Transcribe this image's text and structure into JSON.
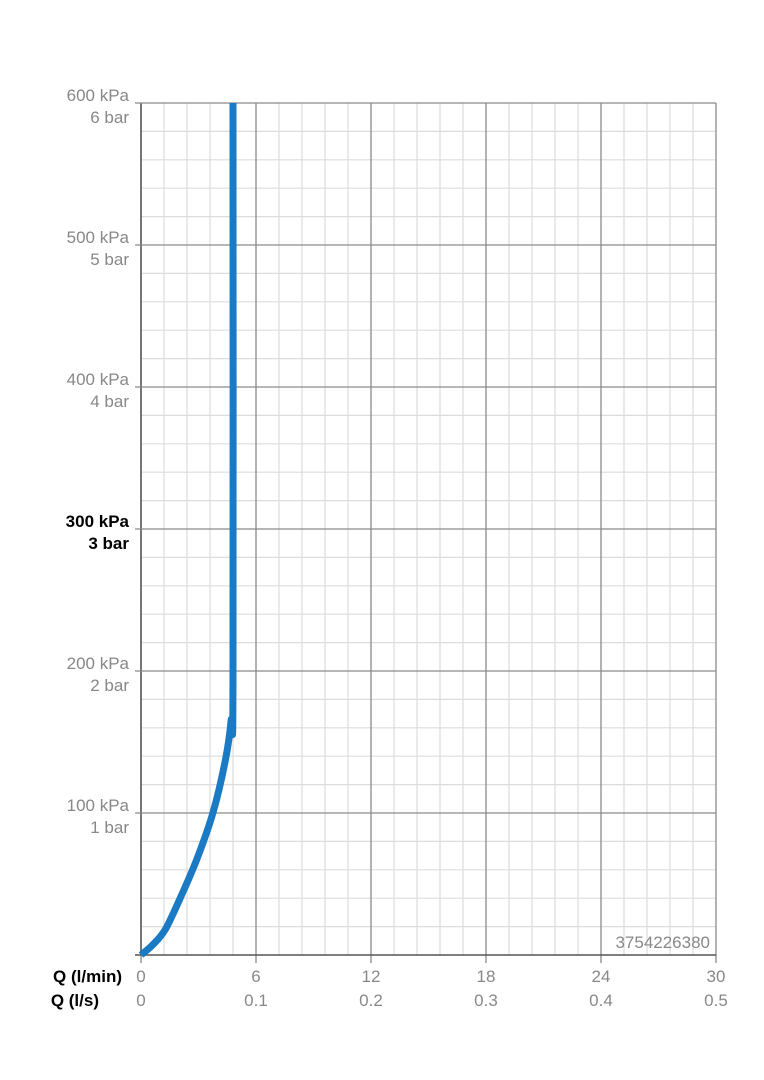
{
  "chart_data": {
    "type": "line",
    "x_axes": [
      {
        "label": "Q (l/min)",
        "ticks": [
          "0",
          "6",
          "12",
          "18",
          "24",
          "30"
        ],
        "range": [
          0,
          30
        ]
      },
      {
        "label": "Q (l/s)",
        "ticks": [
          "0",
          "0.1",
          "0.2",
          "0.3",
          "0.4",
          "0.5"
        ],
        "range": [
          0,
          0.5
        ]
      }
    ],
    "y_axis": {
      "range": [
        0,
        600
      ],
      "ticks": [
        {
          "value": 100,
          "kpa": "100 kPa",
          "bar": "1 bar",
          "highlight": false
        },
        {
          "value": 200,
          "kpa": "200 kPa",
          "bar": "2 bar",
          "highlight": false
        },
        {
          "value": 300,
          "kpa": "300 kPa",
          "bar": "3 bar",
          "highlight": true
        },
        {
          "value": 400,
          "kpa": "400 kPa",
          "bar": "4 bar",
          "highlight": false
        },
        {
          "value": 500,
          "kpa": "500 kPa",
          "bar": "5 bar",
          "highlight": false
        },
        {
          "value": 600,
          "kpa": "600 kPa",
          "bar": "6 bar",
          "highlight": false
        }
      ]
    },
    "grid": true,
    "minor_divisions": 5,
    "series": [
      {
        "color": "#1a7ac4",
        "points": [
          [
            0,
            0
          ],
          [
            0.6,
            7
          ],
          [
            1.25,
            17.6
          ],
          [
            2.0,
            38.7
          ],
          [
            2.9,
            67
          ],
          [
            3.75,
            100
          ],
          [
            4.4,
            137
          ],
          [
            4.7,
            165
          ],
          [
            4.8,
            194
          ],
          [
            4.8,
            600
          ]
        ]
      }
    ],
    "annotation": "3754226380"
  },
  "colors": {
    "line": "#1a7ac4",
    "label": "#888888",
    "highlight": "#000000",
    "major_grid": "#8a8a8a",
    "minor_grid": "#dddddd"
  }
}
